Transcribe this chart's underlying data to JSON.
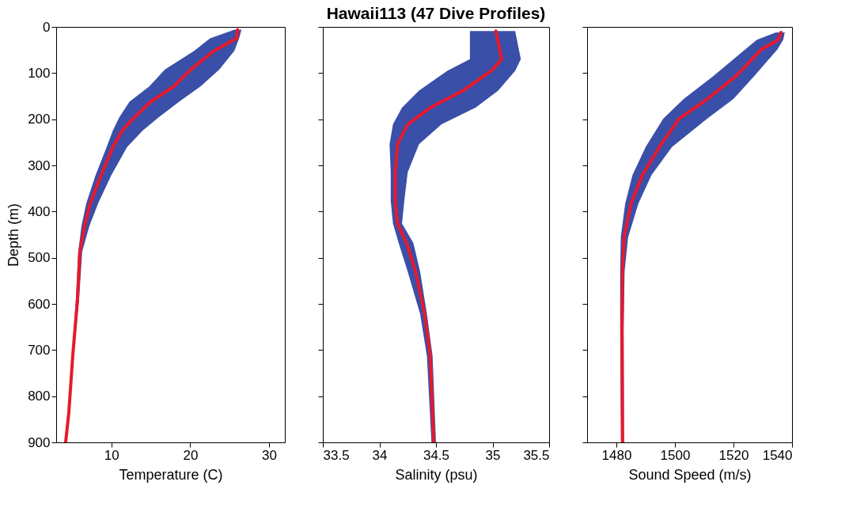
{
  "chart_data": [
    {
      "type": "line",
      "orientation": "horizontal",
      "xlabel": "Temperature (C)",
      "ylabel": "Depth (m)",
      "xlim": [
        3,
        32
      ],
      "xticks": [
        10,
        20,
        30
      ],
      "ylim": [
        900,
        0
      ],
      "yticks": [
        0,
        100,
        200,
        300,
        400,
        500,
        600,
        700,
        800,
        900
      ],
      "x": [
        6,
        25,
        52,
        92,
        129,
        162,
        196,
        224,
        260,
        321,
        383,
        432,
        487,
        591,
        713,
        836,
        900
      ],
      "series": [
        {
          "color": "#e8192c",
          "values": [
            26.0,
            25.9,
            23.0,
            20.1,
            17.9,
            15.0,
            12.9,
            11.4,
            10.2,
            8.7,
            7.3,
            6.6,
            6.0,
            5.7,
            5.1,
            4.6,
            4.2
          ],
          "lower": [
            25.6,
            22.5,
            20.5,
            16.8,
            14.8,
            12.3,
            11.0,
            10.2,
            9.4,
            8.0,
            6.8,
            6.2,
            5.8,
            5.5,
            5.0,
            4.5,
            4.1
          ],
          "upper": [
            26.5,
            26.2,
            25.6,
            23.7,
            21.3,
            18.6,
            16.0,
            14.0,
            12.0,
            10.0,
            8.3,
            7.2,
            6.3,
            5.9,
            5.2,
            4.7,
            4.3
          ]
        }
      ]
    },
    {
      "type": "line",
      "orientation": "horizontal",
      "title": "Hawaii113 (47 Dive Profiles)",
      "xlabel": "Salinity (psu)",
      "xlim": [
        33.5,
        35.5
      ],
      "xticks": [
        33.5,
        34,
        34.5,
        35,
        35.5
      ],
      "ylim": [
        900,
        0
      ],
      "yticks": [
        0,
        100,
        200,
        300,
        400,
        500,
        600,
        700,
        800,
        900
      ],
      "tick_labels": "x",
      "x": [
        9,
        70,
        95,
        138,
        175,
        211,
        254,
        315,
        377,
        426,
        468,
        530,
        622,
        713,
        900
      ],
      "series": [
        {
          "color": "#e8192c",
          "values": [
            35.03,
            35.08,
            34.99,
            34.74,
            34.45,
            34.25,
            34.16,
            34.14,
            34.14,
            34.16,
            34.24,
            34.32,
            34.4,
            34.45,
            34.48
          ],
          "lower": [
            34.8,
            34.8,
            34.6,
            34.35,
            34.2,
            34.12,
            34.09,
            34.1,
            34.1,
            34.12,
            34.17,
            34.25,
            34.36,
            34.42,
            34.46
          ],
          "upper": [
            35.2,
            35.25,
            35.2,
            35.05,
            34.85,
            34.55,
            34.35,
            34.25,
            34.22,
            34.2,
            34.3,
            34.36,
            34.42,
            34.47,
            34.5
          ]
        }
      ]
    },
    {
      "type": "line",
      "orientation": "horizontal",
      "xlabel": "Sound Speed (m/s)",
      "xlim": [
        1470,
        1540
      ],
      "xticks": [
        1480,
        1500,
        1520,
        1540
      ],
      "ylim": [
        900,
        0
      ],
      "yticks": [
        0,
        100,
        200,
        300,
        400,
        500,
        600,
        700,
        800,
        900
      ],
      "tick_labels": "x",
      "x": [
        12,
        28,
        49,
        107,
        156,
        199,
        260,
        321,
        383,
        456,
        530,
        652,
        900
      ],
      "series": [
        {
          "color": "#e8192c",
          "values": [
            1536.2,
            1535.3,
            1529.5,
            1520.8,
            1511.1,
            1501.4,
            1494.7,
            1488.9,
            1485.0,
            1482.6,
            1482.1,
            1481.9,
            1482.1
          ],
          "lower": [
            1534.5,
            1528,
            1524,
            1513,
            1503,
            1496,
            1490,
            1485.5,
            1483,
            1481.5,
            1481.3,
            1481.3,
            1481.6
          ],
          "upper": [
            1537.5,
            1537,
            1535,
            1527,
            1520,
            1511,
            1499,
            1492,
            1487.5,
            1484,
            1482.8,
            1482.5,
            1482.6
          ]
        }
      ]
    }
  ]
}
